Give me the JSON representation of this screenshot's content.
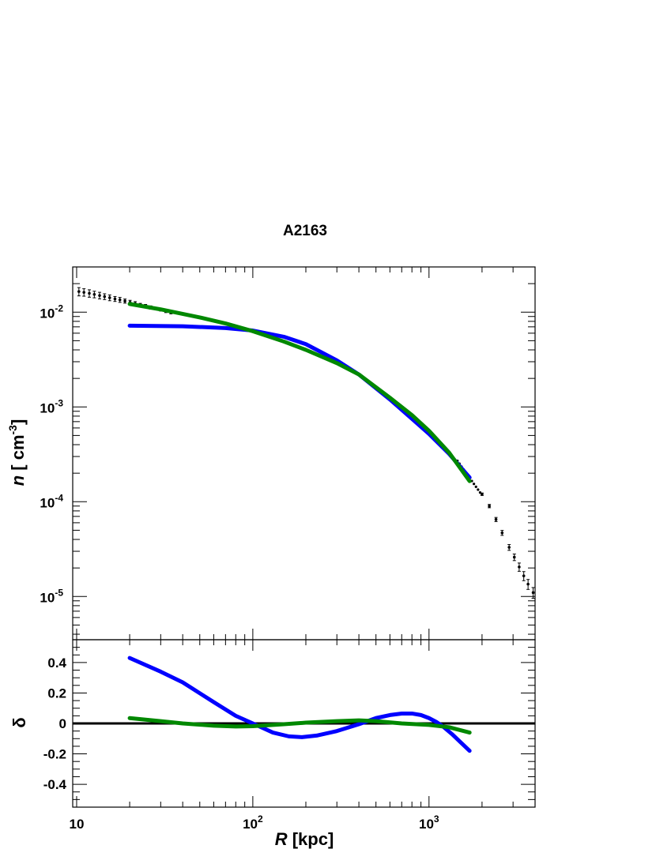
{
  "chart_data": [
    {
      "type": "scatter",
      "panel": "top",
      "title": "A2163",
      "xlabel_italic": "R",
      "xlabel_unit": " [kpc]",
      "ylabel_italic": "n",
      "ylabel_unit_base": " [ cm",
      "ylabel_unit_exp": "-3",
      "ylabel_unit_close": "]",
      "x_scale": "log",
      "y_scale": "log",
      "xlim": [
        9.5,
        4000
      ],
      "ylim": [
        3.5e-06,
        0.03
      ],
      "x_ticks": [
        {
          "value": 10,
          "base": "10",
          "exp": ""
        },
        {
          "value": 100,
          "base": "10",
          "exp": "2"
        },
        {
          "value": 1000,
          "base": "10",
          "exp": "3"
        }
      ],
      "y_ticks": [
        {
          "value": 0.01,
          "base": "10",
          "exp": "-2"
        },
        {
          "value": 0.001,
          "base": "10",
          "exp": "-3"
        },
        {
          "value": 0.0001,
          "base": "10",
          "exp": "-4"
        },
        {
          "value": 1e-05,
          "base": "10",
          "exp": "-5"
        }
      ],
      "grid": false,
      "series": [
        {
          "name": "",
          "kind": "data_points",
          "color": "#000000",
          "x": [
            10.3,
            11.0,
            11.8,
            12.6,
            13.5,
            14.4,
            15.4,
            16.5,
            17.6,
            18.8,
            20.1,
            21.5,
            23.0,
            24.6,
            26.3,
            28.1,
            30.0,
            32.1,
            34.3,
            2000,
            2200,
            2400,
            2600,
            2850,
            3050,
            3250,
            3450,
            3650,
            3900
          ],
          "y": [
            0.0165,
            0.0162,
            0.0158,
            0.0154,
            0.015,
            0.0146,
            0.0142,
            0.0138,
            0.0135,
            0.0131,
            0.0127,
            0.0123,
            0.0119,
            0.0116,
            0.0112,
            0.0109,
            0.0106,
            0.0102,
            0.0099,
            0.00012,
            9e-05,
            6.5e-05,
            4.7e-05,
            3.3e-05,
            2.6e-05,
            2.05e-05,
            1.65e-05,
            1.35e-05,
            1.1e-05
          ],
          "err_frac": [
            0.1,
            0.09,
            0.09,
            0.08,
            0.08,
            0.07,
            0.07,
            0.06,
            0.06,
            0.05,
            0.05,
            0.05,
            0.04,
            0.04,
            0.04,
            0.03,
            0.03,
            0.03,
            0.03,
            0.03,
            0.04,
            0.05,
            0.06,
            0.07,
            0.08,
            0.1,
            0.11,
            0.12,
            0.13
          ]
        },
        {
          "name": "",
          "kind": "dense_points",
          "color": "#000000",
          "x_range": [
            1450,
            1950
          ],
          "y_range": [
            0.00027,
            0.000125
          ],
          "count": 12
        },
        {
          "name": "",
          "kind": "line",
          "color": "#0000ff",
          "x": [
            20,
            40,
            70,
            100,
            150,
            200,
            300,
            400,
            600,
            800,
            1000,
            1300,
            1700
          ],
          "y": [
            0.0072,
            0.0071,
            0.0068,
            0.0064,
            0.0055,
            0.0046,
            0.0031,
            0.0022,
            0.0012,
            0.00075,
            0.00052,
            0.00032,
            0.00018
          ]
        },
        {
          "name": "",
          "kind": "line",
          "color": "#008800",
          "x": [
            20,
            30,
            50,
            70,
            100,
            150,
            200,
            300,
            400,
            600,
            800,
            1000,
            1300,
            1700
          ],
          "y": [
            0.0122,
            0.0107,
            0.0088,
            0.0076,
            0.0063,
            0.0049,
            0.004,
            0.0029,
            0.0022,
            0.00125,
            0.00082,
            0.00056,
            0.00033,
            0.000165
          ]
        }
      ]
    },
    {
      "type": "line",
      "panel": "bottom",
      "ylabel": "δ",
      "x_scale": "log",
      "xlim": [
        9.5,
        4000
      ],
      "ylim": [
        -0.55,
        0.55
      ],
      "y_ticks": [
        {
          "value": 0.4,
          "label": "0.4"
        },
        {
          "value": 0.2,
          "label": "0.2"
        },
        {
          "value": 0,
          "label": "0"
        },
        {
          "value": -0.2,
          "label": "-0.2"
        },
        {
          "value": -0.4,
          "label": "-0.4"
        }
      ],
      "reference_line": {
        "value": 0,
        "color": "#000000"
      },
      "series": [
        {
          "name": "",
          "color": "#0000ff",
          "x": [
            20,
            30,
            40,
            60,
            80,
            100,
            130,
            160,
            190,
            230,
            300,
            400,
            500,
            600,
            700,
            800,
            900,
            1000,
            1100,
            1200,
            1350,
            1500,
            1700
          ],
          "y": [
            0.43,
            0.34,
            0.27,
            0.14,
            0.05,
            0.0,
            -0.06,
            -0.085,
            -0.09,
            -0.08,
            -0.05,
            -0.005,
            0.035,
            0.055,
            0.065,
            0.065,
            0.055,
            0.035,
            0.01,
            -0.02,
            -0.07,
            -0.12,
            -0.18
          ]
        },
        {
          "name": "",
          "color": "#008800",
          "x": [
            20,
            30,
            40,
            60,
            80,
            100,
            150,
            200,
            300,
            400,
            500,
            700,
            1000,
            1300,
            1700
          ],
          "y": [
            0.035,
            0.015,
            0.0,
            -0.015,
            -0.02,
            -0.018,
            -0.005,
            0.005,
            0.015,
            0.02,
            0.015,
            0.0,
            -0.01,
            -0.025,
            -0.06
          ]
        }
      ]
    }
  ]
}
